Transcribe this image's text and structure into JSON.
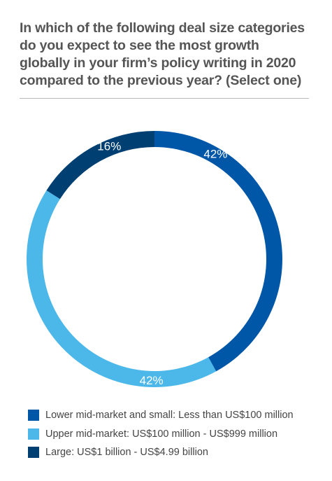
{
  "chart_data": {
    "type": "pie",
    "title": "In which of the following deal size categories do you expect to see the most growth globally in your firm’s policy writing in 2020 compared to the previous year? (Select one)",
    "donut": true,
    "legend_position": "bottom-left",
    "slices": [
      {
        "name": "Lower mid-market and small: Less than US$100 million",
        "value": 42,
        "label": "42%",
        "color": "#0057a8"
      },
      {
        "name": "Upper mid-market: US$100 million - US$999 million",
        "value": 42,
        "label": "42%",
        "color": "#4cb8ea"
      },
      {
        "name": "Large: US$1 billion - US$4.99 billion",
        "value": 16,
        "label": "16%",
        "color": "#003f72"
      }
    ]
  }
}
